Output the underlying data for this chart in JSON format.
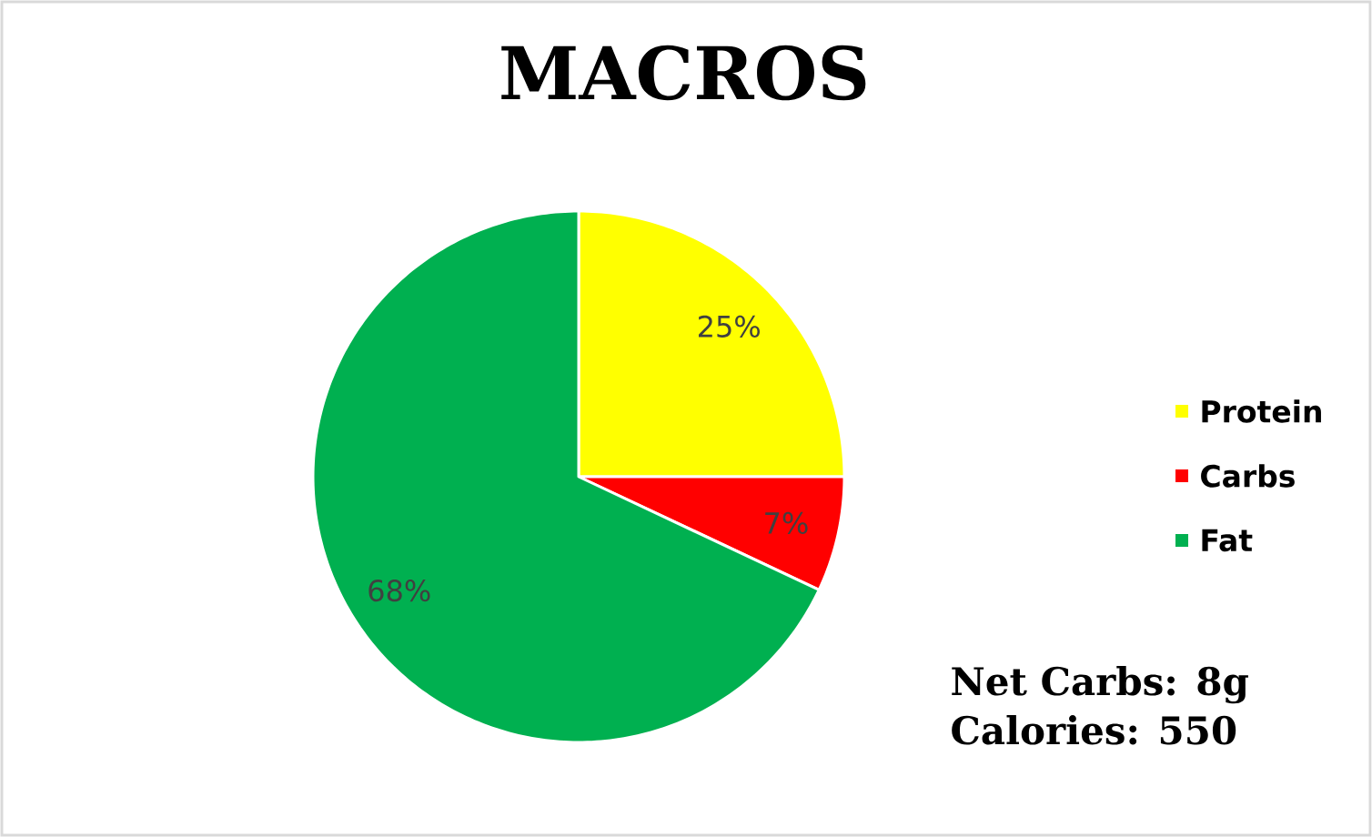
{
  "chart_data": {
    "type": "pie",
    "title": "MACROS",
    "categories": [
      "Protein",
      "Carbs",
      "Fat"
    ],
    "values": [
      25,
      7,
      68
    ],
    "colors": [
      "#ffff00",
      "#ff0000",
      "#00b050"
    ],
    "value_labels": [
      "25%",
      "7%",
      "68%"
    ],
    "legend": "right",
    "annotations": [
      "Net Carbs: 8g",
      "Calories: 550"
    ]
  }
}
